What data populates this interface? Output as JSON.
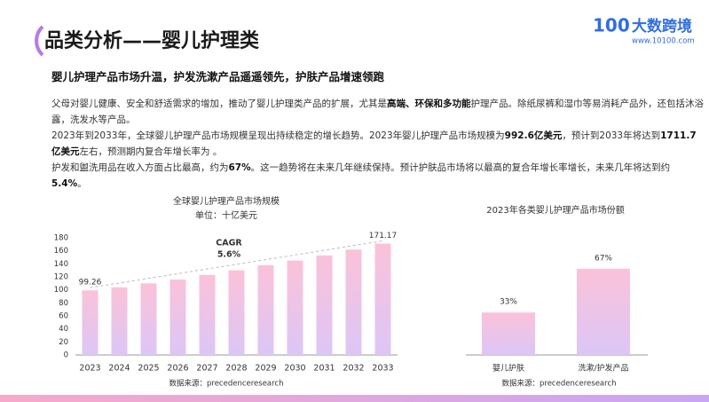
{
  "header": {
    "title": "品类分析——婴儿护理类",
    "logo_mark": "100",
    "logo_name": "大数跨境",
    "logo_url": "www.10100.com"
  },
  "subheading": "婴儿护理产品市场升温，护发洗漱产品遥遥领先，护肤产品增速领跑",
  "paragraphs": [
    [
      {
        "text": "父母对婴儿健康、安全和舒适需求的增加，推动了婴儿护理类产品的扩展，尤其是",
        "bold": false
      },
      {
        "text": "高端、环保和多功能",
        "bold": true
      },
      {
        "text": "护理产品。除纸尿裤和湿巾等易消耗产品外，还包括沐浴露，洗发水等产品。",
        "bold": false
      }
    ],
    [
      {
        "text": "2023年到2033年，全球婴儿护理产品市场规模呈现出持续稳定的增长趋势。2023年婴儿护理产品市场规模为",
        "bold": false
      },
      {
        "text": "992.6亿美元",
        "bold": true
      },
      {
        "text": "，预计到2033年将达到",
        "bold": false
      },
      {
        "text": "1711.7亿美元",
        "bold": true
      },
      {
        "text": "左右，预测期内复合年增长率为 。",
        "bold": false
      }
    ],
    [
      {
        "text": "护发和盥洗用品在收入方面占比最高，约为",
        "bold": false
      },
      {
        "text": "67%",
        "bold": true
      },
      {
        "text": "。这一趋势将在未来几年继续保持。预计护肤品市场将以最高的复合年增长率增长，未来几年将达到约",
        "bold": false
      },
      {
        "text": "5.4%",
        "bold": true
      },
      {
        "text": "。",
        "bold": false
      }
    ]
  ],
  "chart_data": [
    {
      "type": "bar",
      "title": "全球婴儿护理产品市场规模",
      "subtitle": "单位：十亿美元",
      "categories": [
        "2023",
        "2024",
        "2025",
        "2026",
        "2027",
        "2028",
        "2029",
        "2030",
        "2031",
        "2032",
        "2033"
      ],
      "values": [
        99.26,
        104,
        110,
        116,
        123,
        130,
        138,
        145,
        153,
        162,
        171.17
      ],
      "value_labels": [
        "99.26",
        null,
        null,
        null,
        null,
        null,
        null,
        null,
        null,
        null,
        "171.17"
      ],
      "ylim": [
        0,
        180
      ],
      "yticks": [
        0,
        20,
        40,
        60,
        80,
        100,
        120,
        140,
        160,
        180
      ],
      "annotation": "CAGR",
      "annotation_value": "5.6%",
      "source": "数据来源：precedenceresearch"
    },
    {
      "type": "bar",
      "title": "2023年各类婴儿护理产品市场份额",
      "categories": [
        "婴儿护肤",
        "洗漱/护发产品"
      ],
      "values": [
        33,
        67
      ],
      "value_labels": [
        "33%",
        "67%"
      ],
      "source": "数据来源：precedenceresearch"
    }
  ]
}
